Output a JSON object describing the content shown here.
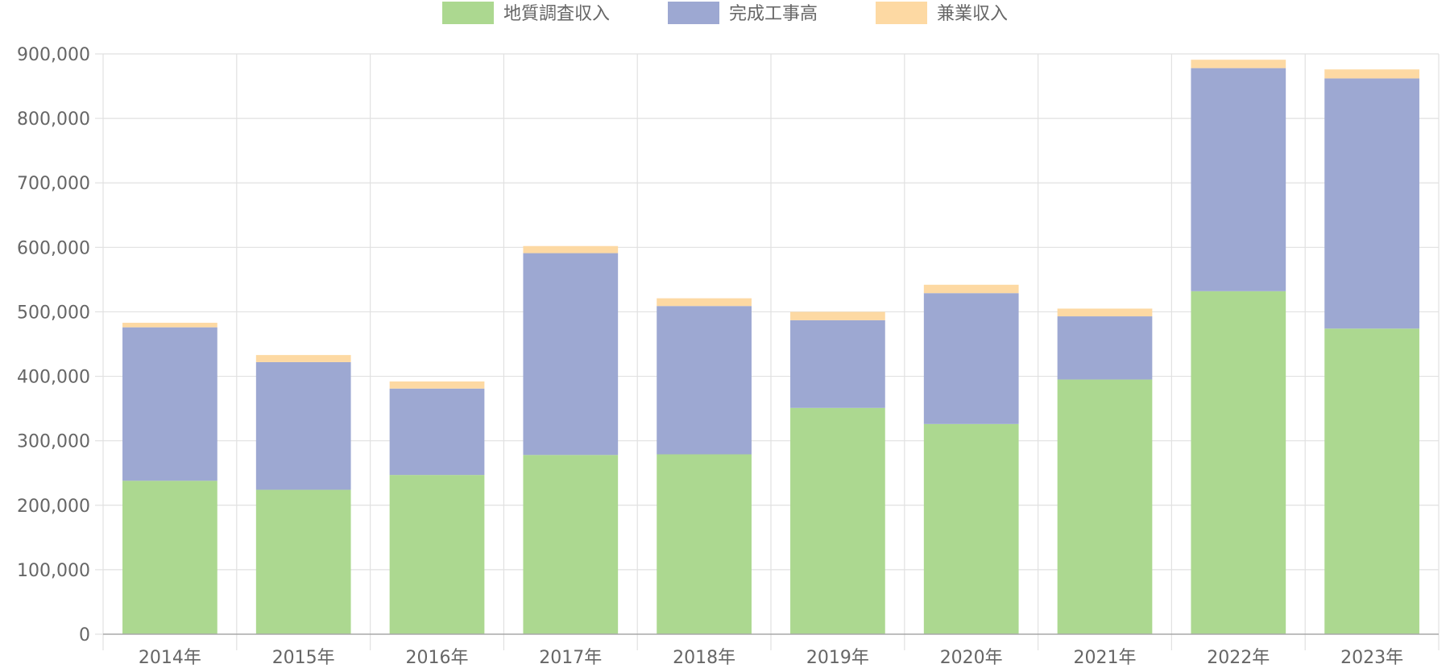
{
  "chart_data": {
    "type": "bar",
    "stacked": true,
    "categories": [
      "2014年",
      "2015年",
      "2016年",
      "2017年",
      "2018年",
      "2019年",
      "2020年",
      "2021年",
      "2022年",
      "2023年"
    ],
    "series": [
      {
        "name": "地質調査収入",
        "color": "#acd890",
        "values": [
          238000,
          224000,
          247000,
          278000,
          279000,
          351000,
          326000,
          395000,
          532000,
          474000
        ]
      },
      {
        "name": "完成工事高",
        "color": "#9da8d2",
        "values": [
          238000,
          198000,
          134000,
          313000,
          230000,
          136000,
          203000,
          98000,
          346000,
          388000
        ]
      },
      {
        "name": "兼業収入",
        "color": "#fdd9a3",
        "values": [
          7000,
          11000,
          11000,
          11000,
          12000,
          13000,
          13000,
          12000,
          13000,
          14000
        ]
      }
    ],
    "yticks": [
      "0",
      "100,000",
      "200,000",
      "300,000",
      "400,000",
      "500,000",
      "600,000",
      "700,000",
      "800,000",
      "900,000"
    ],
    "ylim": [
      0,
      900000
    ],
    "grid": true,
    "legend_position": "top-center"
  }
}
